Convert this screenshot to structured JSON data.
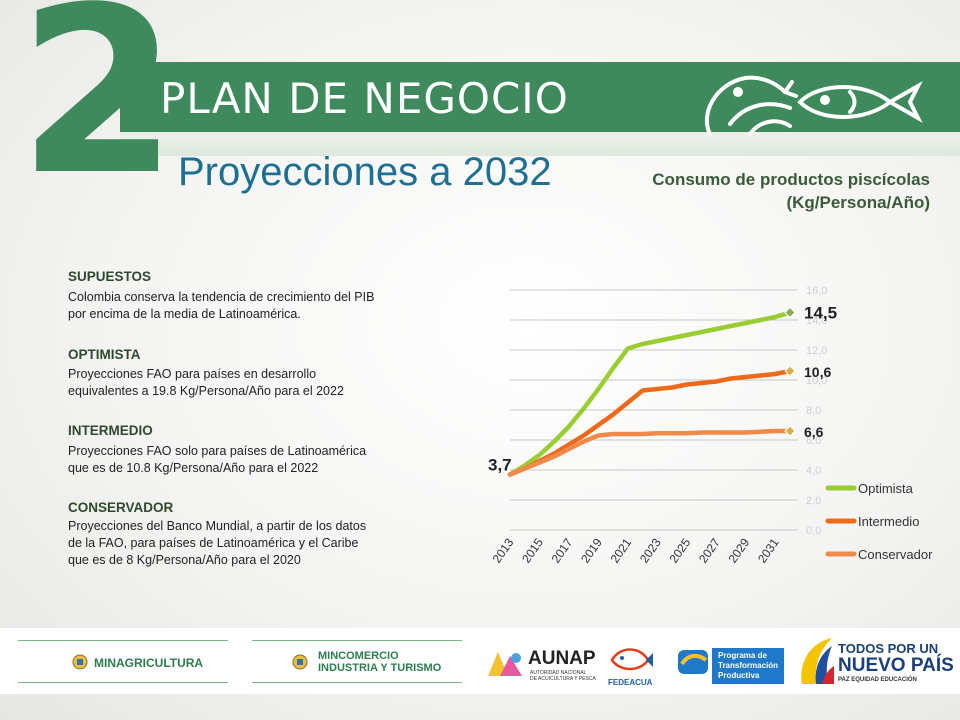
{
  "header": {
    "section_number": "2",
    "title": "PLAN DE NEGOCIO",
    "subtitle": "Proyecciones a 2032",
    "chart_caption_line1": "Consumo de productos piscícolas",
    "chart_caption_line2": "(Kg/Persona/Año)"
  },
  "scenarios": [
    {
      "heading": "SUPUESTOS",
      "lines": [
        "Colombia conserva la tendencia de crecimiento del PIB",
        "por encima de la media de Latinoamérica."
      ]
    },
    {
      "heading": "OPTIMISTA",
      "lines": [
        "Proyecciones FAO para países en desarrollo",
        "equivalentes a 19.8 Kg/Persona/Año para el 2022"
      ]
    },
    {
      "heading": "INTERMEDIO",
      "lines": [
        "Proyecciones FAO solo para países de Latinoamérica",
        "que es de 10.8 Kg/Persona/Año para el 2022"
      ]
    },
    {
      "heading": "CONSERVADOR",
      "lines": [
        "Proyecciones del Banco Mundial, a partir de los datos",
        "de la FAO, para países de Latinoamérica y el Caribe",
        "que es de 8 Kg/Persona/Año para el 2020"
      ]
    }
  ],
  "chart_data": {
    "type": "line",
    "x": [
      2013,
      2014,
      2015,
      2016,
      2017,
      2018,
      2019,
      2020,
      2021,
      2022,
      2023,
      2024,
      2025,
      2026,
      2027,
      2028,
      2029,
      2030,
      2031,
      2032
    ],
    "x_tick_labels": [
      "2013",
      "2015",
      "2017",
      "2019",
      "2021",
      "2023",
      "2025",
      "2027",
      "2029",
      "2031"
    ],
    "y_tick_labels": [
      "0,0",
      "2,0",
      "4,0",
      "6,0",
      "8,0",
      "10,0",
      "12,0",
      "14,0",
      "16,0"
    ],
    "ylim": [
      0,
      16
    ],
    "grid": true,
    "legend_position": "right",
    "series": [
      {
        "name": "Optimista",
        "color": "#9acd32",
        "values": [
          3.7,
          4.3,
          5.0,
          5.9,
          6.9,
          8.1,
          9.4,
          10.8,
          12.1,
          12.4,
          12.6,
          12.8,
          13.0,
          13.2,
          13.4,
          13.6,
          13.8,
          14.0,
          14.2,
          14.5
        ]
      },
      {
        "name": "Intermedio",
        "color": "#ec6a1a",
        "values": [
          3.7,
          4.1,
          4.6,
          5.1,
          5.7,
          6.3,
          7.0,
          7.7,
          8.5,
          9.3,
          9.4,
          9.5,
          9.7,
          9.8,
          9.9,
          10.1,
          10.2,
          10.3,
          10.4,
          10.6
        ]
      },
      {
        "name": "Conservador",
        "color": "#f08a4b",
        "values": [
          3.7,
          4.1,
          4.5,
          4.9,
          5.4,
          5.9,
          6.3,
          6.4,
          6.4,
          6.4,
          6.45,
          6.45,
          6.45,
          6.5,
          6.5,
          6.5,
          6.5,
          6.55,
          6.6,
          6.6
        ]
      }
    ],
    "annotations": {
      "start": "3,7",
      "optimista_end": "14,5",
      "intermedio_end": "10,6",
      "conservador_end": "6,6"
    }
  },
  "footer": {
    "minagricultura": "MINAGRICULTURA",
    "mincomercio_line1": "MINCOMERCIO",
    "mincomercio_line2": "INDUSTRIA Y TURISMO",
    "aunap": "AUNAP",
    "aunap_sub1": "AUTORIDAD NACIONAL",
    "aunap_sub2": "DE ACUICULTURA Y PESCA",
    "fedeacua": "FEDEACUA",
    "ptp_line1": "Programa de",
    "ptp_line2": "Transformación",
    "ptp_line3": "Productiva",
    "gov_line1": "TODOS POR UN",
    "gov_line2": "NUEVO PAÍS",
    "gov_line3": "PAZ  EQUIDAD  EDUCACIÓN"
  },
  "colors": {
    "brand_green": "#3e8a5c",
    "title_blue": "#1f6f93"
  },
  "icons": [
    "fish-icon",
    "fish-outline-icon",
    "colombia-shield-icon"
  ]
}
